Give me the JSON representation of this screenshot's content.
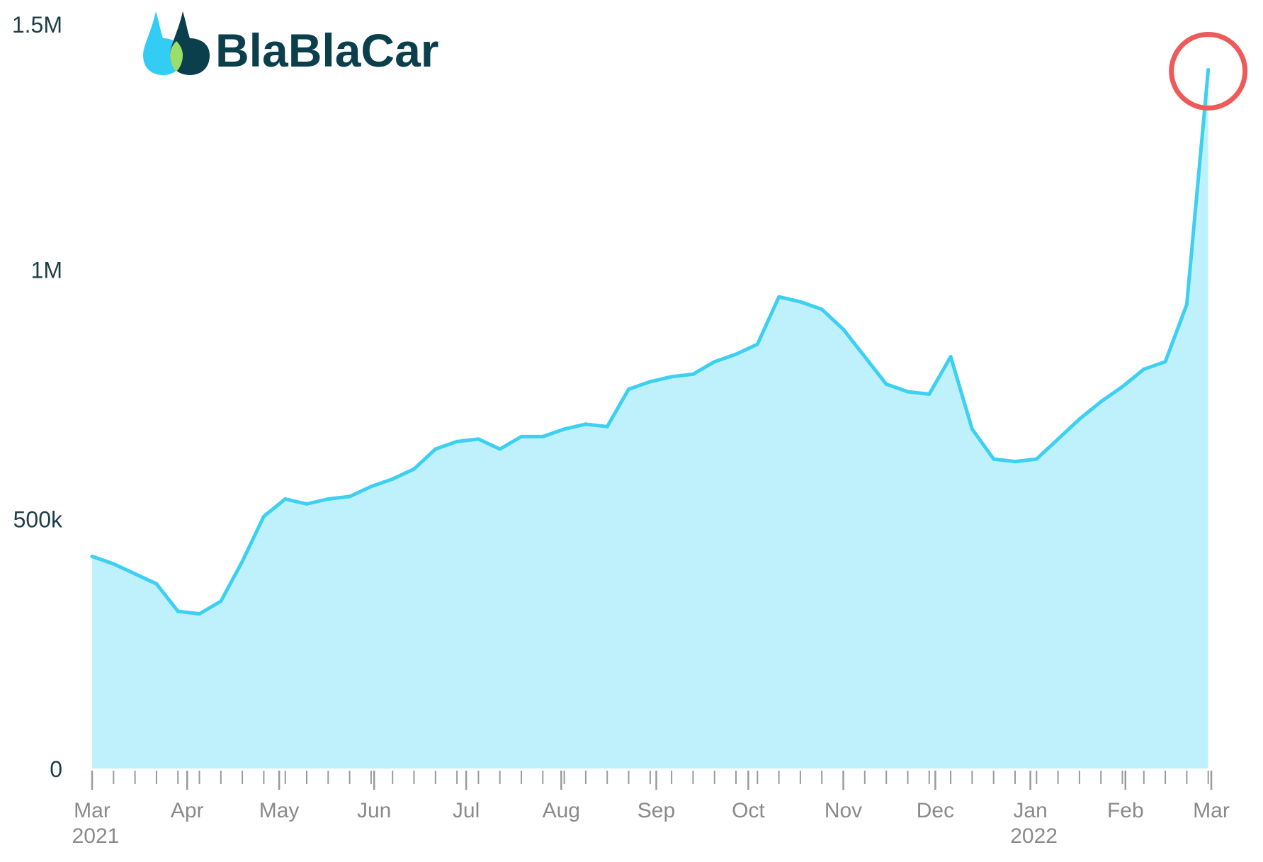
{
  "brand": {
    "name": "BlaBlaCar",
    "logo": "blablacar-logo-icon",
    "colors": {
      "light": "#33ccf5",
      "dark": "#0b3f4c",
      "accent": "#9bde6b"
    }
  },
  "highlight": {
    "shape": "circle",
    "color": "#ee5a5a",
    "target": "latest point"
  },
  "chart_data": {
    "type": "area",
    "title": "",
    "xlabel": "",
    "ylabel": "",
    "ylim": [
      0,
      1500000
    ],
    "grid": false,
    "line_color": "#3dd0f2",
    "fill_color": "#bff1fc",
    "y_ticks": [
      {
        "value": 0,
        "label": "0"
      },
      {
        "value": 500000,
        "label": "500k"
      },
      {
        "value": 1000000,
        "label": "1M"
      },
      {
        "value": 1500000,
        "label": "1.5M"
      }
    ],
    "x_ticks": [
      {
        "date": "2021-03-01",
        "label": "Mar",
        "sublabel": "2021"
      },
      {
        "date": "2021-04-01",
        "label": "Apr"
      },
      {
        "date": "2021-05-01",
        "label": "May"
      },
      {
        "date": "2021-06-01",
        "label": "Jun"
      },
      {
        "date": "2021-07-01",
        "label": "Jul"
      },
      {
        "date": "2021-08-01",
        "label": "Aug"
      },
      {
        "date": "2021-09-01",
        "label": "Sep"
      },
      {
        "date": "2021-10-01",
        "label": "Oct"
      },
      {
        "date": "2021-11-01",
        "label": "Nov"
      },
      {
        "date": "2021-12-01",
        "label": "Dec"
      },
      {
        "date": "2022-01-01",
        "label": "Jan",
        "sublabel": "2022"
      },
      {
        "date": "2022-02-01",
        "label": "Feb"
      },
      {
        "date": "2022-03-01",
        "label": "Mar"
      }
    ],
    "series": [
      {
        "x": [
          "2021-03-01",
          "2021-03-08",
          "2021-03-15",
          "2021-03-22",
          "2021-03-29",
          "2021-04-05",
          "2021-04-12",
          "2021-04-19",
          "2021-04-26",
          "2021-05-03",
          "2021-05-10",
          "2021-05-17",
          "2021-05-24",
          "2021-05-31",
          "2021-06-07",
          "2021-06-14",
          "2021-06-21",
          "2021-06-28",
          "2021-07-05",
          "2021-07-12",
          "2021-07-19",
          "2021-07-26",
          "2021-08-02",
          "2021-08-09",
          "2021-08-16",
          "2021-08-23",
          "2021-08-30",
          "2021-09-06",
          "2021-09-13",
          "2021-09-20",
          "2021-09-27",
          "2021-10-04",
          "2021-10-11",
          "2021-10-18",
          "2021-10-25",
          "2021-11-01",
          "2021-11-08",
          "2021-11-15",
          "2021-11-22",
          "2021-11-29",
          "2021-12-06",
          "2021-12-13",
          "2021-12-20",
          "2021-12-27",
          "2022-01-03",
          "2022-01-10",
          "2022-01-17",
          "2022-01-24",
          "2022-01-31",
          "2022-02-07",
          "2022-02-14",
          "2022-02-21",
          "2022-02-28"
        ],
        "values": [
          425000,
          410000,
          390000,
          370000,
          315000,
          310000,
          335000,
          415000,
          505000,
          540000,
          530000,
          540000,
          545000,
          565000,
          580000,
          600000,
          640000,
          655000,
          660000,
          640000,
          665000,
          665000,
          680000,
          690000,
          685000,
          760000,
          775000,
          785000,
          790000,
          815000,
          830000,
          850000,
          945000,
          935000,
          920000,
          880000,
          825000,
          770000,
          755000,
          750000,
          825000,
          680000,
          620000,
          615000,
          620000,
          660000,
          700000,
          735000,
          765000,
          800000,
          815000,
          930000,
          1400000
        ]
      }
    ]
  }
}
